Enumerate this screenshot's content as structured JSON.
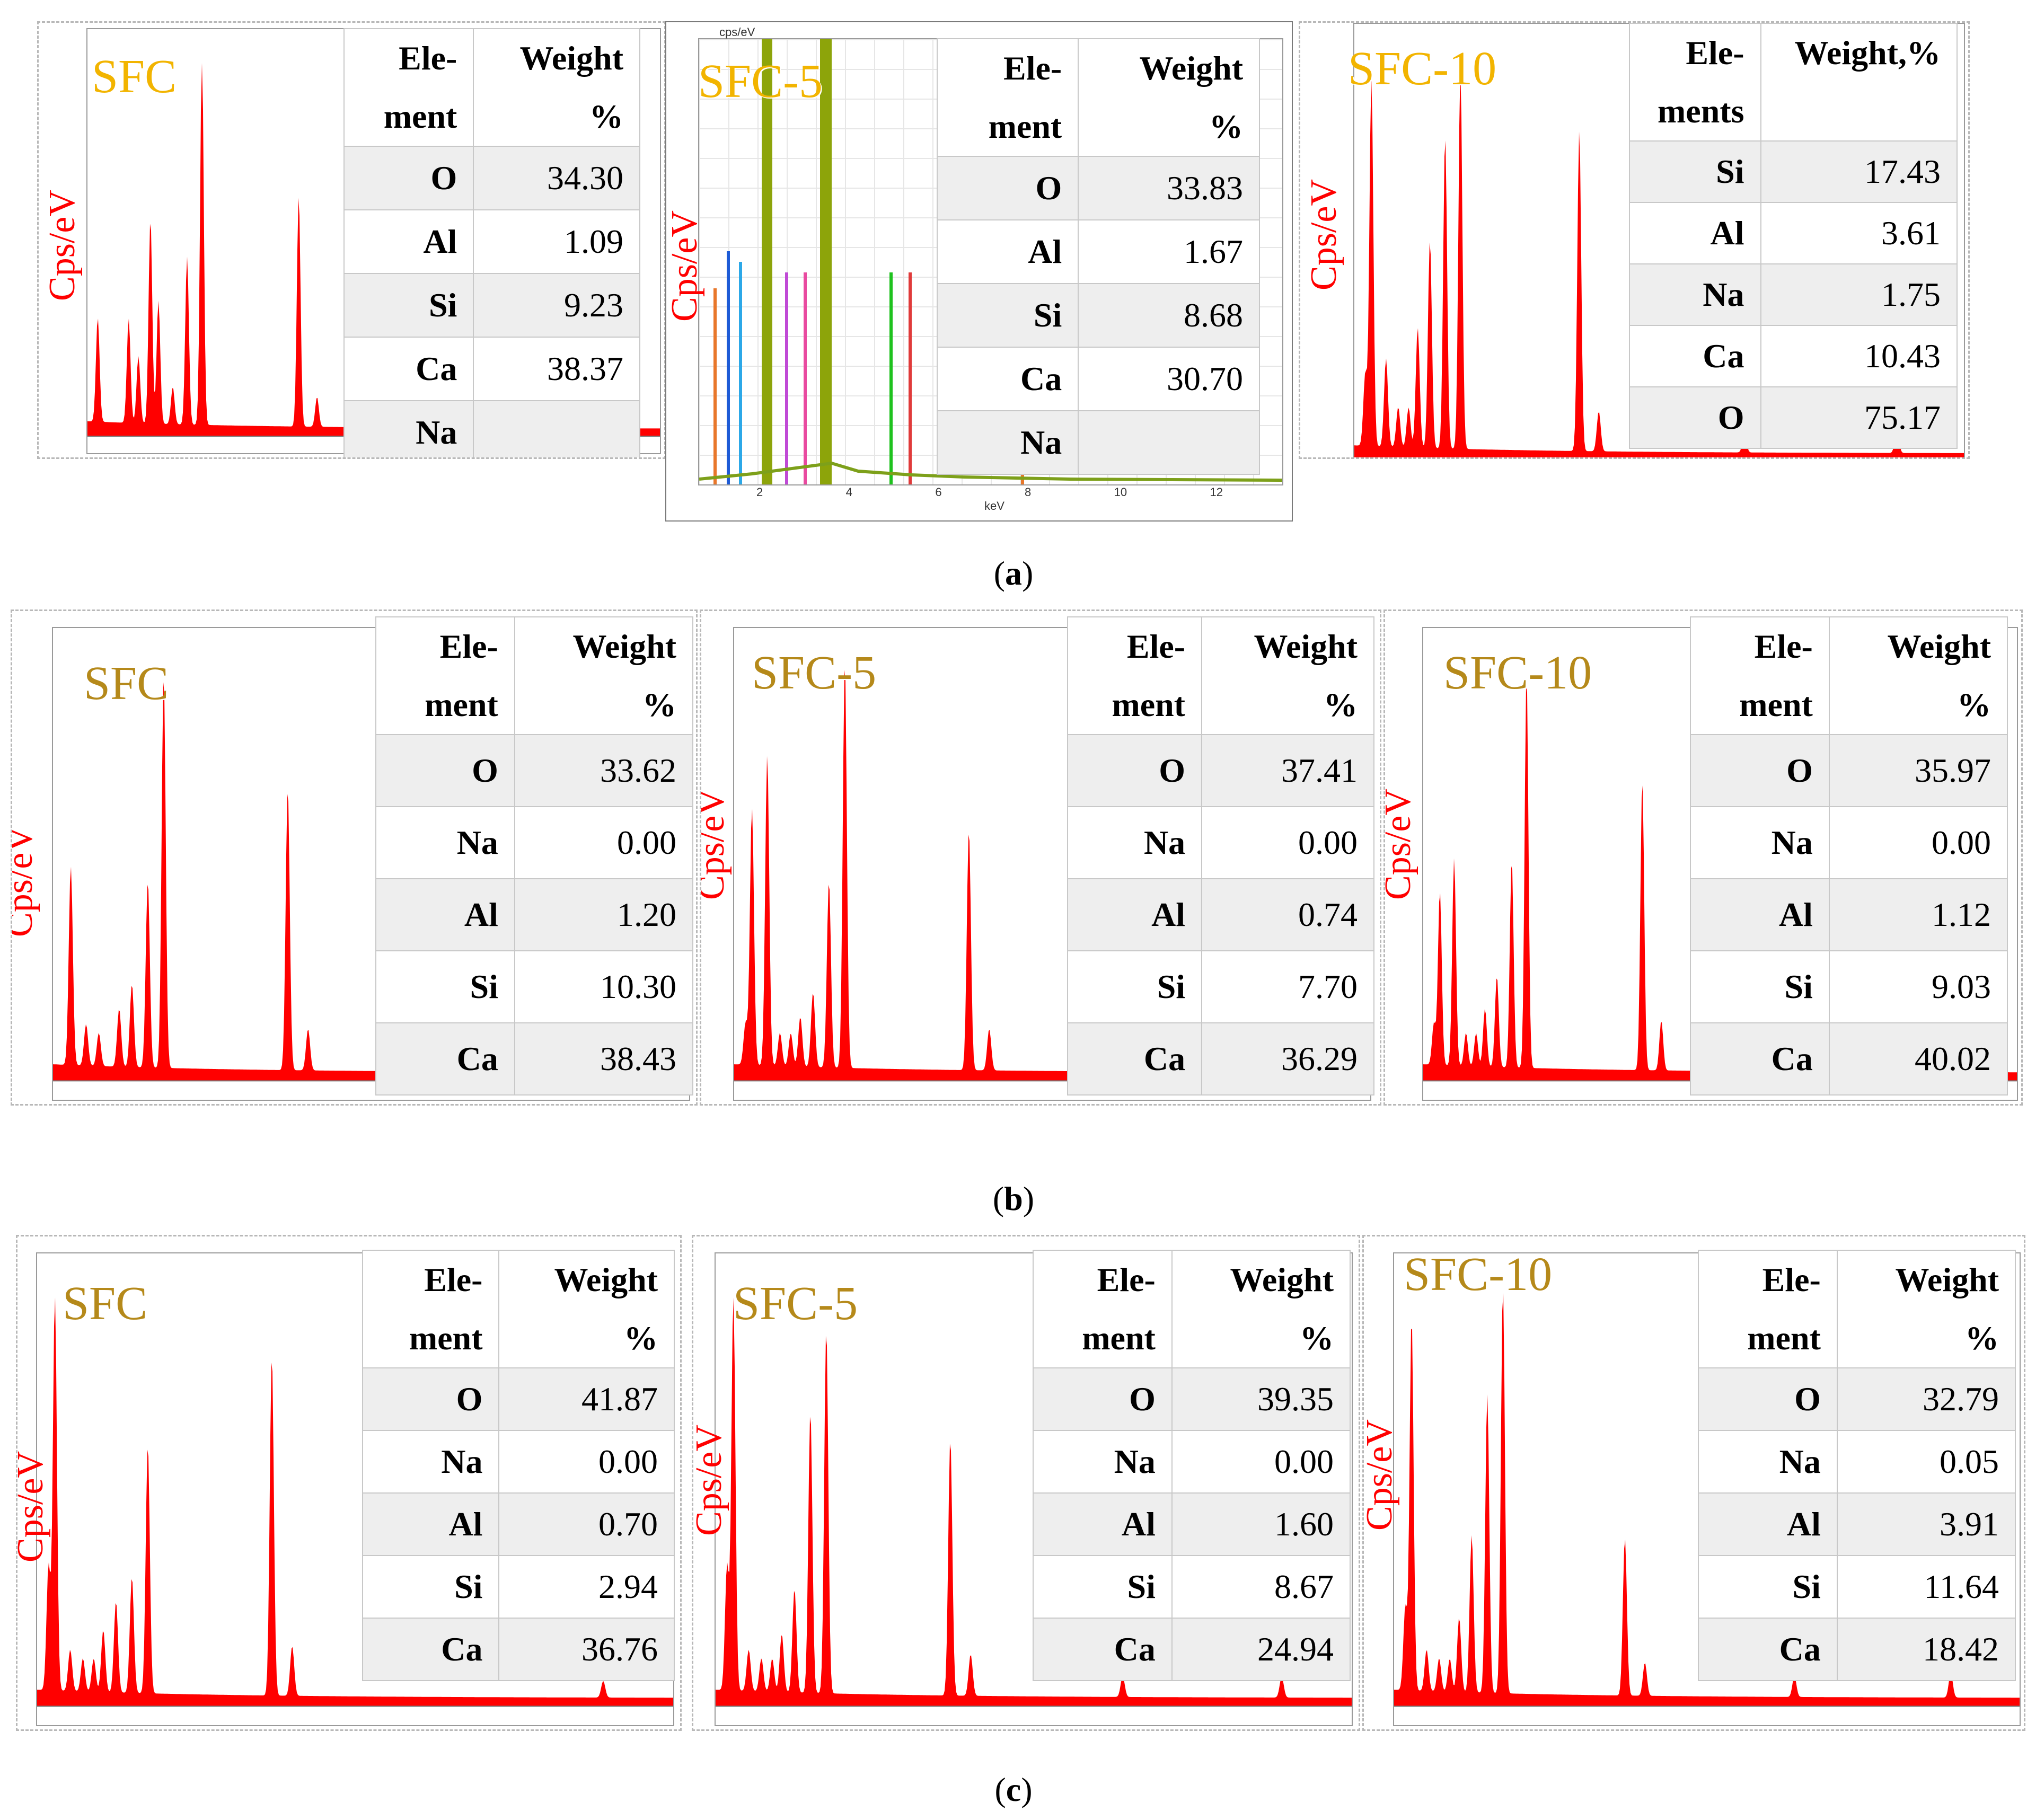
{
  "colors": {
    "spectrum": "#ff0000",
    "label_light": "#f2b400",
    "label_dark": "#b5891a",
    "ylabel": "#ff0000"
  },
  "ylabel": "Cps/eV",
  "headers": {
    "element_top": "Ele-",
    "element_bottom": "ment",
    "elements_bottom": "ments",
    "weight_top": "Weight",
    "weight_comma": "Weight,%",
    "weight_bottom": "%"
  },
  "panel_a2_axis": {
    "unit": "keV",
    "ylabel_top": "cps/eV",
    "ticks": [
      "2",
      "4",
      "6",
      "8",
      "10",
      "12"
    ]
  },
  "captions": {
    "a": "a",
    "b": "b",
    "c": "c"
  },
  "rows": [
    {
      "id": "a",
      "panels": [
        {
          "label": "SFC",
          "rows": [
            {
              "element": "O",
              "weight": "34.30"
            },
            {
              "element": "Al",
              "weight": "1.09"
            },
            {
              "element": "Si",
              "weight": "9.23"
            },
            {
              "element": "Ca",
              "weight": "38.37"
            },
            {
              "element": "Na",
              "weight": ""
            }
          ]
        },
        {
          "label": "SFC-5",
          "rows": [
            {
              "element": "O",
              "weight": "33.83"
            },
            {
              "element": "Al",
              "weight": "1.67"
            },
            {
              "element": "Si",
              "weight": "8.68"
            },
            {
              "element": "Ca",
              "weight": "30.70"
            },
            {
              "element": "Na",
              "weight": ""
            }
          ]
        },
        {
          "label": "SFC-10",
          "rows": [
            {
              "element": "Si",
              "weight": "17.43"
            },
            {
              "element": "Al",
              "weight": "3.61"
            },
            {
              "element": "Na",
              "weight": "1.75"
            },
            {
              "element": "Ca",
              "weight": "10.43"
            },
            {
              "element": "O",
              "weight": "75.17"
            }
          ]
        }
      ]
    },
    {
      "id": "b",
      "panels": [
        {
          "label": "SFC",
          "rows": [
            {
              "element": "O",
              "weight": "33.62"
            },
            {
              "element": "Na",
              "weight": "0.00"
            },
            {
              "element": "Al",
              "weight": "1.20"
            },
            {
              "element": "Si",
              "weight": "10.30"
            },
            {
              "element": "Ca",
              "weight": "38.43"
            }
          ]
        },
        {
          "label": "SFC-5",
          "rows": [
            {
              "element": "O",
              "weight": "37.41"
            },
            {
              "element": "Na",
              "weight": "0.00"
            },
            {
              "element": "Al",
              "weight": "0.74"
            },
            {
              "element": "Si",
              "weight": "7.70"
            },
            {
              "element": "Ca",
              "weight": "36.29"
            }
          ]
        },
        {
          "label": "SFC-10",
          "rows": [
            {
              "element": "O",
              "weight": "35.97"
            },
            {
              "element": "Na",
              "weight": "0.00"
            },
            {
              "element": "Al",
              "weight": "1.12"
            },
            {
              "element": "Si",
              "weight": "9.03"
            },
            {
              "element": "Ca",
              "weight": "40.02"
            }
          ]
        }
      ]
    },
    {
      "id": "c",
      "panels": [
        {
          "label": "SFC",
          "rows": [
            {
              "element": "O",
              "weight": "41.87"
            },
            {
              "element": "Na",
              "weight": "0.00"
            },
            {
              "element": "Al",
              "weight": "0.70"
            },
            {
              "element": "Si",
              "weight": "2.94"
            },
            {
              "element": "Ca",
              "weight": "36.76"
            }
          ]
        },
        {
          "label": "SFC-5",
          "rows": [
            {
              "element": "O",
              "weight": "39.35"
            },
            {
              "element": "Na",
              "weight": "0.00"
            },
            {
              "element": "Al",
              "weight": "1.60"
            },
            {
              "element": "Si",
              "weight": "8.67"
            },
            {
              "element": "Ca",
              "weight": "24.94"
            }
          ]
        },
        {
          "label": "SFC-10",
          "rows": [
            {
              "element": "O",
              "weight": "32.79"
            },
            {
              "element": "Na",
              "weight": "0.05"
            },
            {
              "element": "Al",
              "weight": "3.91"
            },
            {
              "element": "Si",
              "weight": "11.64"
            },
            {
              "element": "Ca",
              "weight": "18.42"
            }
          ]
        }
      ]
    }
  ]
}
